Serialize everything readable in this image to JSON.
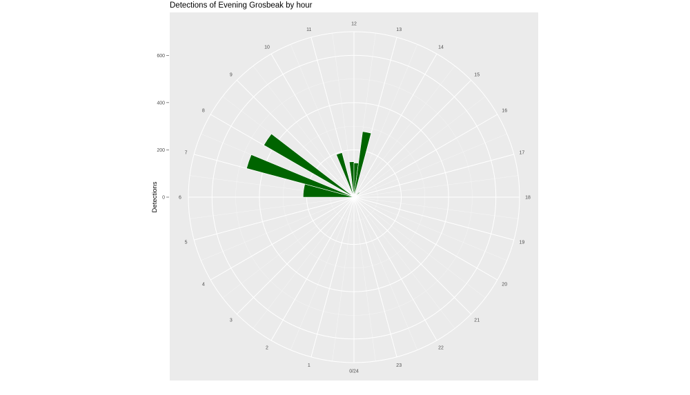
{
  "chart_data": {
    "type": "bar",
    "projection": "polar",
    "title": "Detections of Evening Grosbeak by hour",
    "xlabel": "",
    "ylabel": "Detections",
    "theta_ticks": [
      "0/24",
      "1",
      "2",
      "3",
      "4",
      "5",
      "6",
      "7",
      "8",
      "9",
      "10",
      "11",
      "12",
      "13",
      "14",
      "15",
      "16",
      "17",
      "18",
      "19",
      "20",
      "21",
      "22",
      "23"
    ],
    "ytick_labels": [
      "0",
      "200",
      "400",
      "600"
    ],
    "ytick_values": [
      0,
      200,
      400,
      600
    ],
    "ylim": [
      0,
      700
    ],
    "grid": true,
    "bar_color": "#006400",
    "panel_color": "#ebebeb",
    "bins": [
      {
        "start": 6.0,
        "end": 7.0,
        "value": 215
      },
      {
        "start": 7.0,
        "end": 7.5,
        "value": 470
      },
      {
        "start": 8.0,
        "end": 8.5,
        "value": 440
      },
      {
        "start": 10.5,
        "end": 11.0,
        "value": 195
      },
      {
        "start": 11.5,
        "end": 12.0,
        "value": 150
      },
      {
        "start": 12.0,
        "end": 12.5,
        "value": 145
      },
      {
        "start": 12.5,
        "end": 13.0,
        "value": 280
      },
      {
        "start": 15.0,
        "end": 15.5,
        "value": 30
      }
    ]
  }
}
